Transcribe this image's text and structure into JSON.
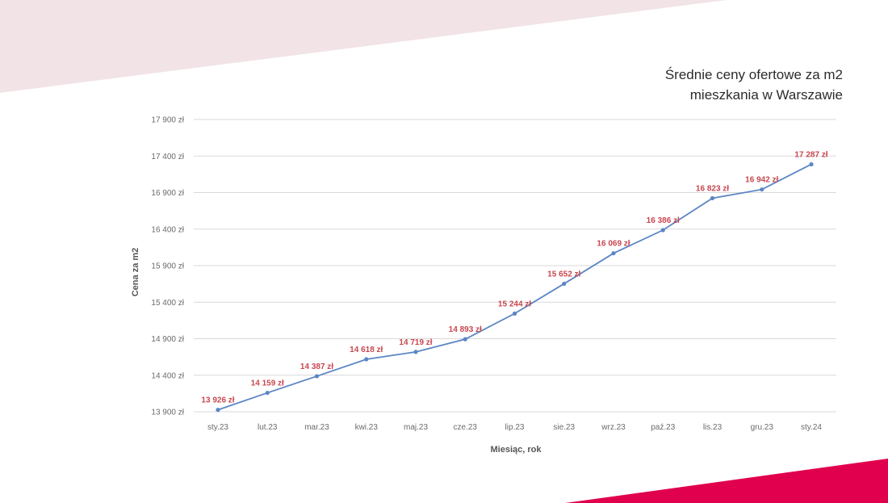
{
  "colors": {
    "accent_top": "#f2e3e6",
    "accent_bottom": "#e0004d",
    "line": "#5b86c4",
    "data_label": "#c8474f",
    "grid": "#d9d9d9"
  },
  "chart_data": {
    "type": "line",
    "title_lines": [
      "Średnie ceny ofertowe za m2",
      "mieszkania w Warszawie"
    ],
    "xlabel": "Miesiąc, rok",
    "ylabel": "Cena za m2",
    "categories": [
      "sty.23",
      "lut.23",
      "mar.23",
      "kwi.23",
      "maj.23",
      "cze.23",
      "lip.23",
      "sie.23",
      "wrz.23",
      "paź.23",
      "lis.23",
      "gru.23",
      "sty.24"
    ],
    "series": [
      {
        "values": [
          13926,
          14159,
          14387,
          14618,
          14719,
          14893,
          15244,
          15652,
          16069,
          16386,
          16823,
          16942,
          17287
        ],
        "labels": [
          "13 926 zł",
          "14 159 zł",
          "14 387 zł",
          "14 618 zł",
          "14 719 zł",
          "14 893 zł",
          "15 244 zł",
          "15 652 zł",
          "16 069 zł",
          "16 386 zł",
          "16 823 zł",
          "16 942 zł",
          "17 287 zł"
        ]
      }
    ],
    "ylim": [
      13900,
      17900
    ],
    "yticks": [
      13900,
      14400,
      14900,
      15400,
      15900,
      16400,
      16900,
      17400,
      17900
    ],
    "ytick_labels": [
      "13 900 zł",
      "14 400 zł",
      "14 900 zł",
      "15 400 zł",
      "15 900 zł",
      "16 400 zł",
      "16 900 zł",
      "17 400 zł",
      "17 900 zł"
    ],
    "grid": true,
    "legend": "none"
  }
}
